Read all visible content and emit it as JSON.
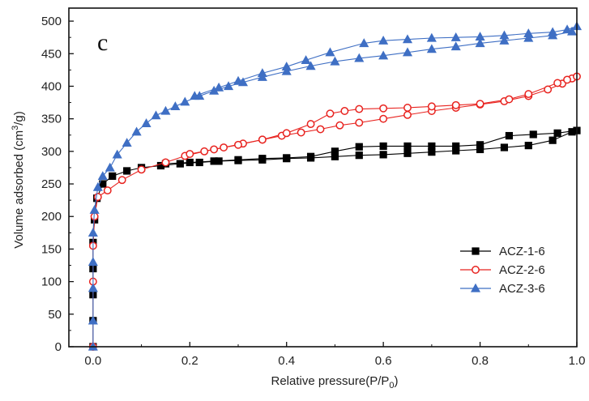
{
  "chart_data": {
    "type": "line",
    "panel_label": "c",
    "xlabel": "Relative pressure(P/P",
    "xlabel_sub": "0",
    "xlabel_end": ")",
    "ylabel": "Volume adsorbed (cm",
    "ylabel_sup": "3",
    "ylabel_end": "/g)",
    "xlim": [
      -0.05,
      1.0
    ],
    "ylim": [
      0,
      520
    ],
    "xticks": [
      "0.0",
      "0.2",
      "0.4",
      "0.6",
      "0.8",
      "1.0"
    ],
    "xtick_values": [
      0.0,
      0.2,
      0.4,
      0.6,
      0.8,
      1.0
    ],
    "yticks": [
      "0",
      "50",
      "100",
      "150",
      "200",
      "250",
      "300",
      "350",
      "400",
      "450",
      "500"
    ],
    "ytick_values": [
      0,
      50,
      100,
      150,
      200,
      250,
      300,
      350,
      400,
      450,
      500
    ],
    "grid": false,
    "legend_position": "lower-right",
    "series": [
      {
        "name": "ACZ-1-6",
        "color": "#000000",
        "marker": "square",
        "filled": true,
        "adsorption": {
          "x": [
            0.0,
            0.0,
            0.0,
            0.0,
            0.0,
            0.003,
            0.008,
            0.02,
            0.04,
            0.07,
            0.1,
            0.14,
            0.18,
            0.22,
            0.26,
            0.3,
            0.35,
            0.4,
            0.45,
            0.5,
            0.55,
            0.6,
            0.65,
            0.7,
            0.75,
            0.8,
            0.85,
            0.9,
            0.95,
            0.99
          ],
          "y": [
            0,
            40,
            80,
            120,
            160,
            195,
            228,
            250,
            262,
            270,
            275,
            278,
            281,
            283,
            285,
            286,
            287,
            289,
            290,
            292,
            294,
            295,
            297,
            299,
            301,
            303,
            306,
            309,
            317,
            330
          ]
        },
        "desorption": {
          "x": [
            1.0,
            0.96,
            0.91,
            0.86,
            0.8,
            0.75,
            0.7,
            0.65,
            0.6,
            0.55,
            0.5,
            0.45,
            0.4,
            0.35,
            0.3,
            0.25,
            0.2,
            0.15
          ],
          "y": [
            332,
            328,
            326,
            324,
            310,
            308,
            308,
            308,
            308,
            307,
            300,
            292,
            290,
            289,
            287,
            285,
            283,
            281
          ]
        }
      },
      {
        "name": "ACZ-2-6",
        "color": "#e8231f",
        "marker": "circle",
        "filled": false,
        "adsorption": {
          "x": [
            0.0,
            0.0,
            0.0,
            0.003,
            0.01,
            0.03,
            0.06,
            0.1,
            0.15,
            0.19,
            0.23,
            0.27,
            0.31,
            0.35,
            0.39,
            0.43,
            0.47,
            0.51,
            0.55,
            0.6,
            0.65,
            0.7,
            0.75,
            0.8,
            0.85,
            0.9,
            0.94,
            0.97,
            0.99
          ],
          "y": [
            0,
            100,
            155,
            200,
            230,
            240,
            256,
            272,
            283,
            293,
            300,
            306,
            312,
            318,
            324,
            329,
            334,
            340,
            344,
            350,
            356,
            362,
            367,
            372,
            377,
            385,
            395,
            404,
            412
          ]
        },
        "desorption": {
          "x": [
            1.0,
            0.98,
            0.96,
            0.9,
            0.86,
            0.8,
            0.75,
            0.7,
            0.65,
            0.6,
            0.55,
            0.52,
            0.49,
            0.45,
            0.4,
            0.35,
            0.3,
            0.25,
            0.2
          ],
          "y": [
            415,
            410,
            405,
            388,
            380,
            373,
            371,
            369,
            367,
            366,
            365,
            362,
            358,
            342,
            328,
            318,
            310,
            303,
            296
          ]
        }
      },
      {
        "name": "ACZ-3-6",
        "color": "#3f6fc4",
        "marker": "triangle",
        "filled": true,
        "adsorption": {
          "x": [
            0.0,
            0.0,
            0.0,
            0.0,
            0.0,
            0.003,
            0.01,
            0.02,
            0.035,
            0.05,
            0.07,
            0.09,
            0.11,
            0.13,
            0.15,
            0.17,
            0.19,
            0.22,
            0.25,
            0.28,
            0.31,
            0.35,
            0.4,
            0.45,
            0.5,
            0.55,
            0.6,
            0.65,
            0.7,
            0.75,
            0.8,
            0.85,
            0.9,
            0.95,
            0.99
          ],
          "y": [
            0,
            40,
            90,
            130,
            175,
            210,
            245,
            262,
            275,
            295,
            313,
            330,
            343,
            355,
            362,
            369,
            376,
            385,
            393,
            400,
            406,
            414,
            423,
            431,
            438,
            443,
            447,
            452,
            457,
            461,
            466,
            470,
            474,
            478,
            484
          ]
        },
        "desorption": {
          "x": [
            1.0,
            0.98,
            0.95,
            0.9,
            0.85,
            0.8,
            0.75,
            0.7,
            0.65,
            0.6,
            0.56,
            0.49,
            0.44,
            0.4,
            0.35,
            0.3,
            0.26,
            0.21
          ],
          "y": [
            492,
            487,
            483,
            481,
            478,
            476,
            475,
            474,
            472,
            470,
            466,
            452,
            440,
            430,
            420,
            408,
            398,
            385
          ]
        }
      }
    ]
  }
}
